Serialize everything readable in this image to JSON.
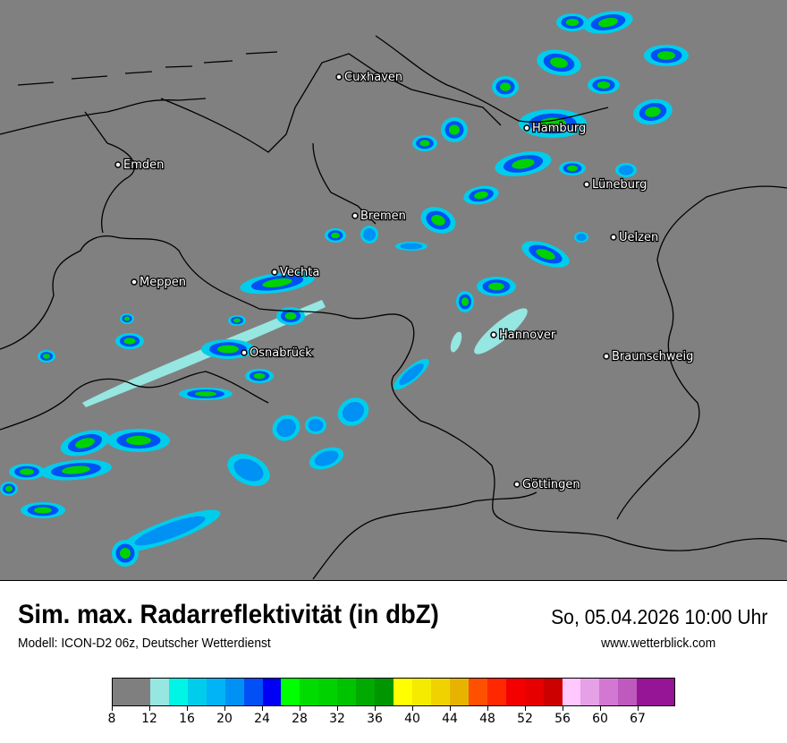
{
  "header": {
    "title": "Sim. max. Radarreflektivität (in dbZ)",
    "datetime": "So, 05.04.2026 10:00 Uhr",
    "model": "Modell: ICON-D2 06z, Deutscher Wetterdienst",
    "website": "www.wetterblick.com"
  },
  "map": {
    "background_color": "#808080",
    "cities": [
      {
        "name": "Cuxhaven"
      },
      {
        "name": "Hamburg"
      },
      {
        "name": "Emden"
      },
      {
        "name": "Lüneburg"
      },
      {
        "name": "Bremen"
      },
      {
        "name": "Uelzen"
      },
      {
        "name": "Vechta"
      },
      {
        "name": "Meppen"
      },
      {
        "name": "Osnabrück"
      },
      {
        "name": "Hannover"
      },
      {
        "name": "Braunschweig"
      },
      {
        "name": "Göttingen"
      }
    ]
  },
  "legend": {
    "tick_labels": [
      "8",
      "12",
      "16",
      "20",
      "24",
      "28",
      "32",
      "36",
      "40",
      "44",
      "48",
      "52",
      "56",
      "60",
      "67"
    ],
    "colors": [
      "#7f7f7f",
      "#7f7f7f",
      "#96e6e1",
      "#00f5e6",
      "#00cdeb",
      "#00b4f5",
      "#0091f5",
      "#0050f5",
      "#0000f5",
      "#00ff00",
      "#00dc00",
      "#00d200",
      "#00c300",
      "#00aa00",
      "#009600",
      "#ffff00",
      "#f5eb00",
      "#f0d200",
      "#e6b400",
      "#ff5000",
      "#ff2800",
      "#f50000",
      "#e60000",
      "#cd0000",
      "#ffc8ff",
      "#e6a0e6",
      "#d278d2",
      "#be5abe",
      "#961496",
      "#961496"
    ]
  }
}
